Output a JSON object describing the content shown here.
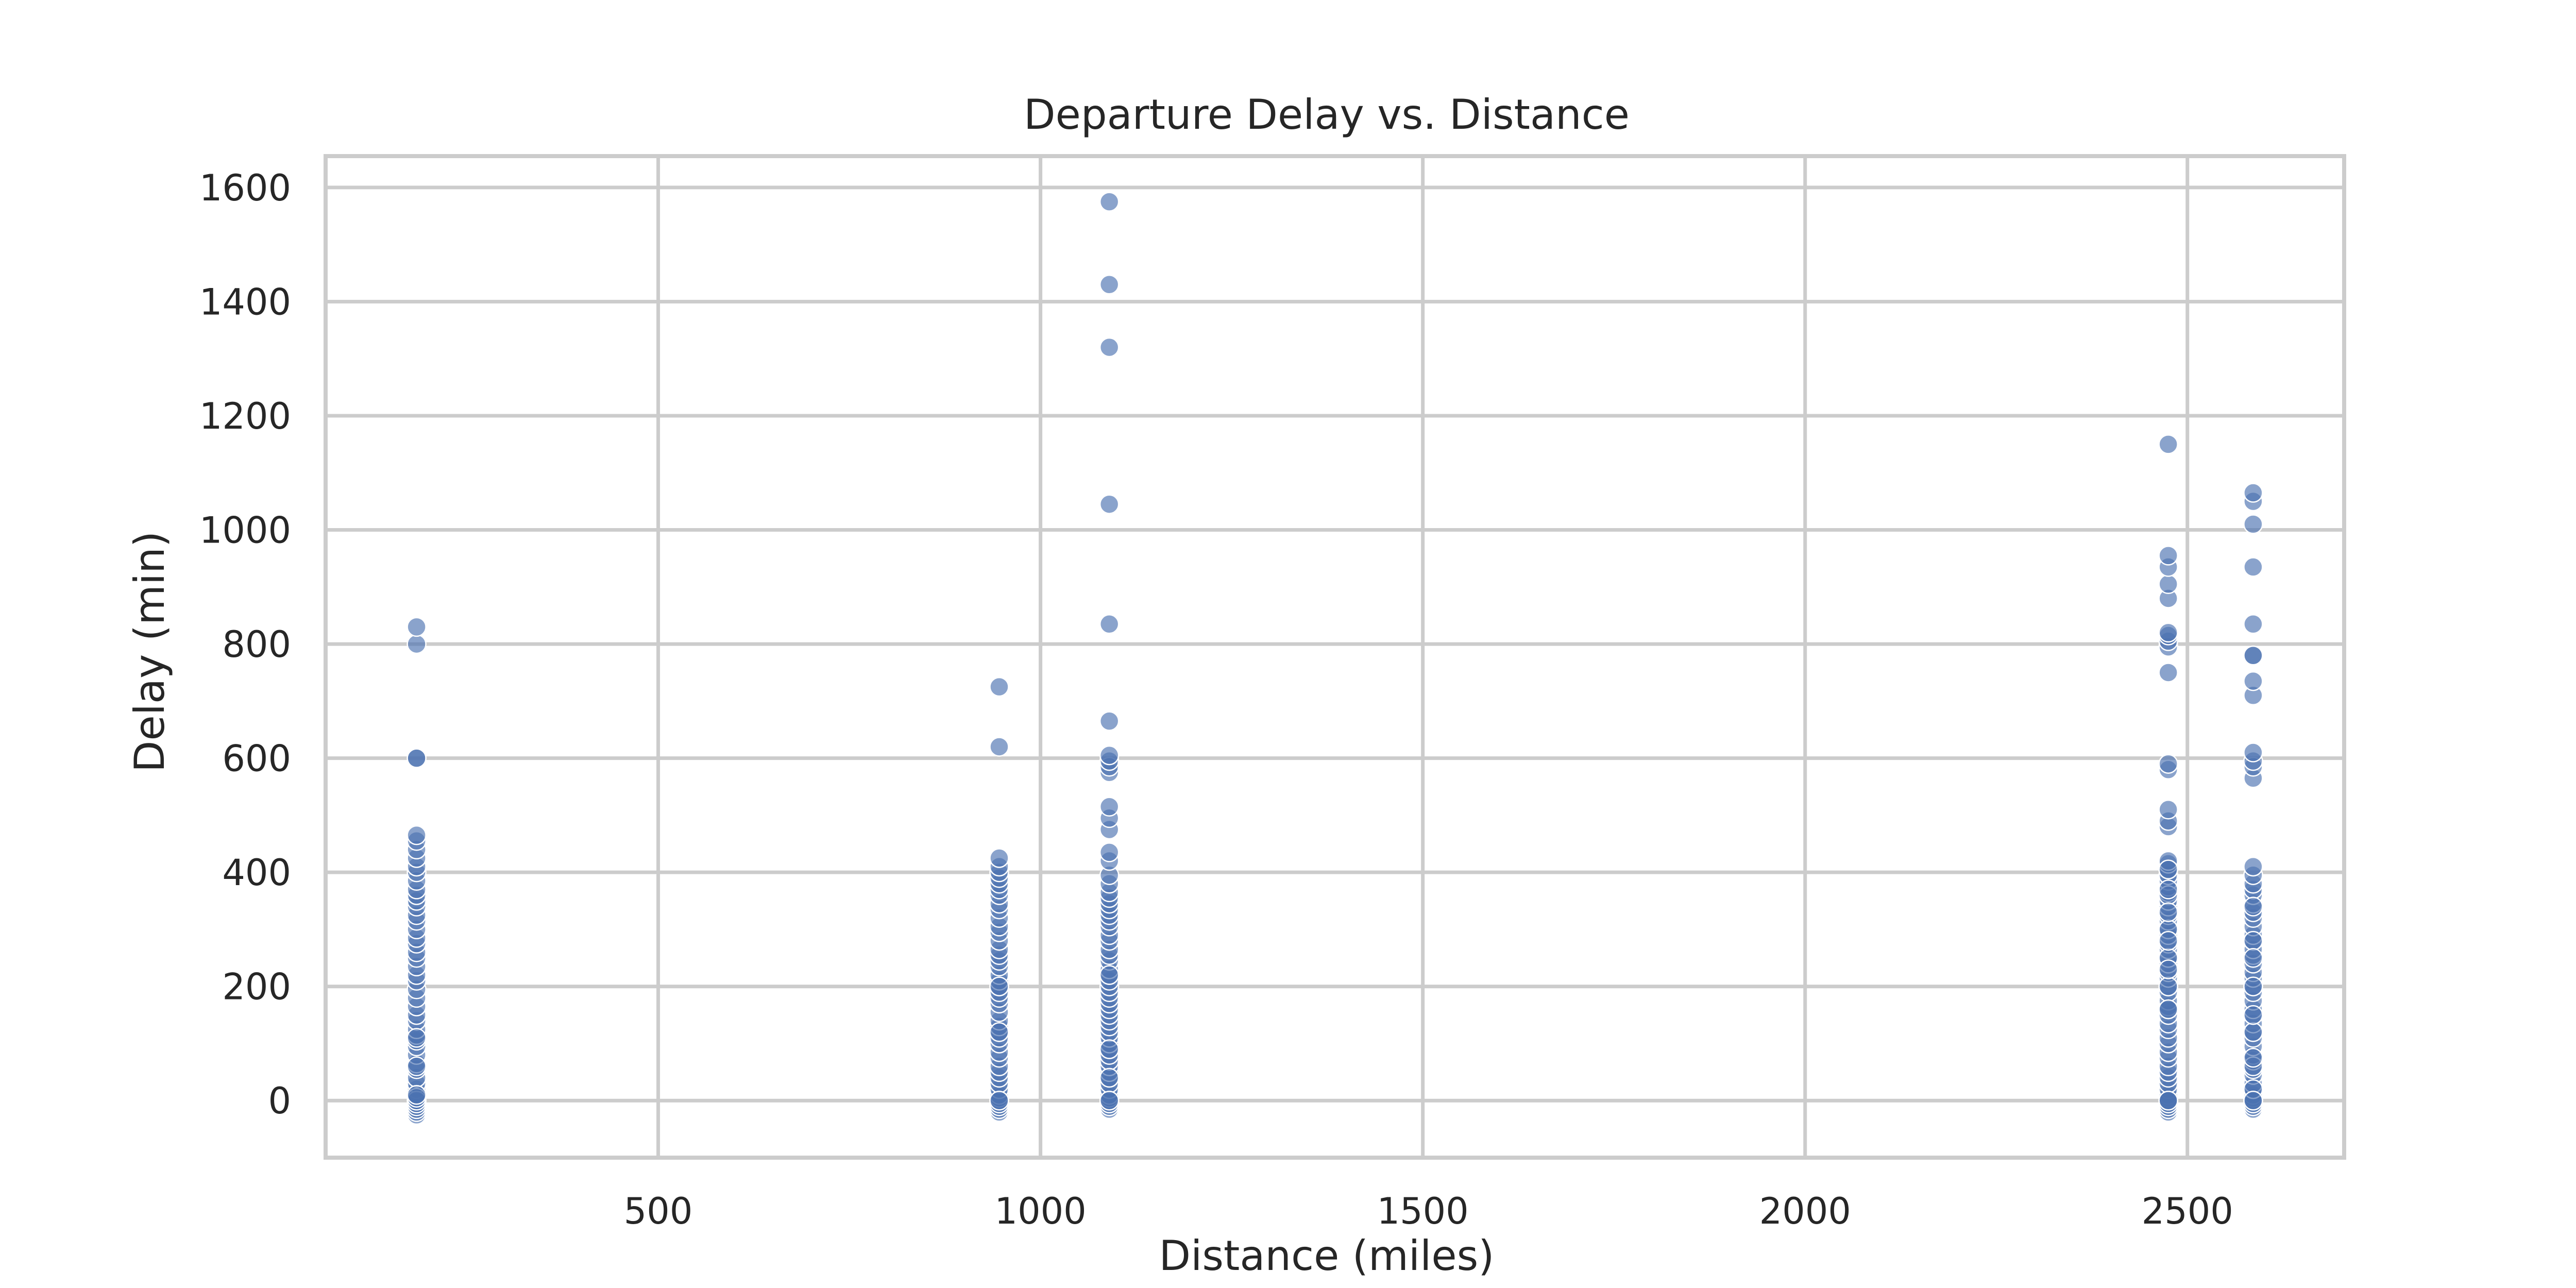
{
  "chart_data": {
    "type": "scatter",
    "title": "Departure Delay vs. Distance",
    "xlabel": "Distance (miles)",
    "ylabel": "Delay (min)",
    "xlim": [
      65,
      2705
    ],
    "ylim": [
      -100,
      1655
    ],
    "xticks": [
      500,
      1000,
      1500,
      2000,
      2500
    ],
    "yticks": [
      0,
      200,
      400,
      600,
      800,
      1000,
      1200,
      1400,
      1600
    ],
    "grid": true,
    "legend": false,
    "marker_color": "#4c72b0",
    "series": [
      {
        "x": [
          184,
          184,
          184,
          184,
          184,
          184,
          184,
          184,
          184,
          184,
          184,
          184,
          184,
          184,
          184,
          184,
          184,
          184,
          184,
          184,
          184,
          184,
          184,
          184,
          184,
          184,
          184,
          184,
          184,
          184,
          184,
          184,
          184,
          184,
          184,
          184,
          184,
          184,
          184,
          184,
          184,
          184,
          184,
          184,
          184,
          184,
          184,
          184,
          184,
          184,
          184,
          184,
          184,
          184,
          946,
          946,
          946,
          946,
          946,
          946,
          946,
          946,
          946,
          946,
          946,
          946,
          946,
          946,
          946,
          946,
          946,
          946,
          946,
          946,
          946,
          946,
          946,
          946,
          946,
          946,
          946,
          946,
          946,
          946,
          946,
          946,
          946,
          946,
          946,
          946,
          946,
          946,
          946,
          946,
          946,
          946,
          946,
          946,
          946,
          946,
          946,
          946,
          946,
          1090,
          1090,
          1090,
          1090,
          1090,
          1090,
          1090,
          1090,
          1090,
          1090,
          1090,
          1090,
          1090,
          1090,
          1090,
          1090,
          1090,
          1090,
          1090,
          1090,
          1090,
          1090,
          1090,
          1090,
          1090,
          1090,
          1090,
          1090,
          1090,
          1090,
          1090,
          1090,
          1090,
          1090,
          1090,
          1090,
          1090,
          1090,
          1090,
          1090,
          1090,
          1090,
          1090,
          1090,
          1090,
          1090,
          1090,
          1090,
          1090,
          1090,
          1090,
          1090,
          1090,
          1090,
          1090,
          1090,
          1090,
          1090,
          1090,
          1090,
          1090,
          1090,
          2475,
          2475,
          2475,
          2475,
          2475,
          2475,
          2475,
          2475,
          2475,
          2475,
          2475,
          2475,
          2475,
          2475,
          2475,
          2475,
          2475,
          2475,
          2475,
          2475,
          2475,
          2475,
          2475,
          2475,
          2475,
          2475,
          2475,
          2475,
          2475,
          2475,
          2475,
          2475,
          2475,
          2475,
          2475,
          2475,
          2475,
          2475,
          2475,
          2475,
          2475,
          2475,
          2475,
          2475,
          2475,
          2475,
          2475,
          2475,
          2475,
          2475,
          2475,
          2475,
          2475,
          2475,
          2475,
          2475,
          2475,
          2475,
          2475,
          2475,
          2475,
          2475,
          2475,
          2475,
          2475,
          2475,
          2475,
          2475,
          2475,
          2475,
          2475,
          2475,
          2586,
          2586,
          2586,
          2586,
          2586,
          2586,
          2586,
          2586,
          2586,
          2586,
          2586,
          2586,
          2586,
          2586,
          2586,
          2586,
          2586,
          2586,
          2586,
          2586,
          2586,
          2586,
          2586,
          2586,
          2586,
          2586,
          2586,
          2586,
          2586,
          2586,
          2586,
          2586,
          2586,
          2586,
          2586,
          2586,
          2586,
          2586,
          2586,
          2586,
          2586,
          2586,
          2586,
          2586,
          2586,
          2586,
          2586,
          2586,
          2586,
          2586,
          2586,
          2586,
          2586,
          2586,
          2586,
          2586,
          2586,
          2586,
          2586,
          2586,
          2586,
          2586
        ],
        "y": [
          -25,
          -20,
          -15,
          -10,
          -5,
          0,
          5,
          10,
          20,
          30,
          40,
          55,
          65,
          80,
          95,
          105,
          115,
          125,
          140,
          150,
          165,
          180,
          195,
          210,
          220,
          235,
          250,
          260,
          275,
          285,
          300,
          315,
          325,
          340,
          350,
          360,
          370,
          385,
          400,
          410,
          425,
          440,
          455,
          465,
          600,
          600,
          800,
          830,
          0,
          0,
          5,
          10,
          60,
          110,
          -20,
          -15,
          -10,
          -5,
          0,
          5,
          10,
          20,
          30,
          40,
          50,
          60,
          75,
          85,
          100,
          110,
          120,
          130,
          140,
          155,
          170,
          180,
          190,
          200,
          210,
          220,
          235,
          245,
          255,
          265,
          280,
          295,
          305,
          320,
          335,
          345,
          360,
          370,
          380,
          390,
          400,
          410,
          425,
          620,
          725,
          0,
          0,
          120,
          200,
          -15,
          -10,
          -5,
          0,
          5,
          10,
          20,
          30,
          40,
          50,
          60,
          70,
          80,
          90,
          100,
          110,
          120,
          130,
          140,
          150,
          160,
          170,
          180,
          190,
          200,
          210,
          220,
          230,
          245,
          255,
          265,
          280,
          290,
          305,
          315,
          325,
          335,
          345,
          355,
          365,
          380,
          395,
          420,
          435,
          475,
          495,
          515,
          575,
          585,
          595,
          605,
          665,
          835,
          1045,
          1320,
          1430,
          1575,
          0,
          0,
          40,
          90,
          220,
          -20,
          -15,
          -10,
          -5,
          0,
          5,
          10,
          20,
          30,
          40,
          50,
          60,
          75,
          85,
          100,
          110,
          125,
          135,
          150,
          165,
          175,
          190,
          200,
          215,
          225,
          240,
          250,
          265,
          275,
          290,
          300,
          315,
          325,
          340,
          350,
          365,
          375,
          385,
          395,
          405,
          415,
          480,
          490,
          510,
          580,
          590,
          750,
          795,
          805,
          815,
          820,
          880,
          905,
          935,
          955,
          1150,
          0,
          0,
          0,
          160,
          200,
          250,
          300,
          360,
          420,
          0,
          160,
          230,
          280,
          330,
          370,
          405,
          -15,
          -10,
          -5,
          0,
          5,
          10,
          20,
          30,
          45,
          55,
          70,
          80,
          95,
          110,
          120,
          135,
          150,
          160,
          175,
          190,
          200,
          215,
          225,
          240,
          255,
          265,
          280,
          290,
          305,
          320,
          330,
          345,
          360,
          370,
          380,
          395,
          410,
          565,
          585,
          595,
          610,
          710,
          735,
          780,
          780,
          835,
          935,
          1010,
          1050,
          1065,
          0,
          0,
          20,
          60,
          120,
          200,
          280,
          340,
          0,
          75,
          150,
          250
        ]
      }
    ]
  }
}
